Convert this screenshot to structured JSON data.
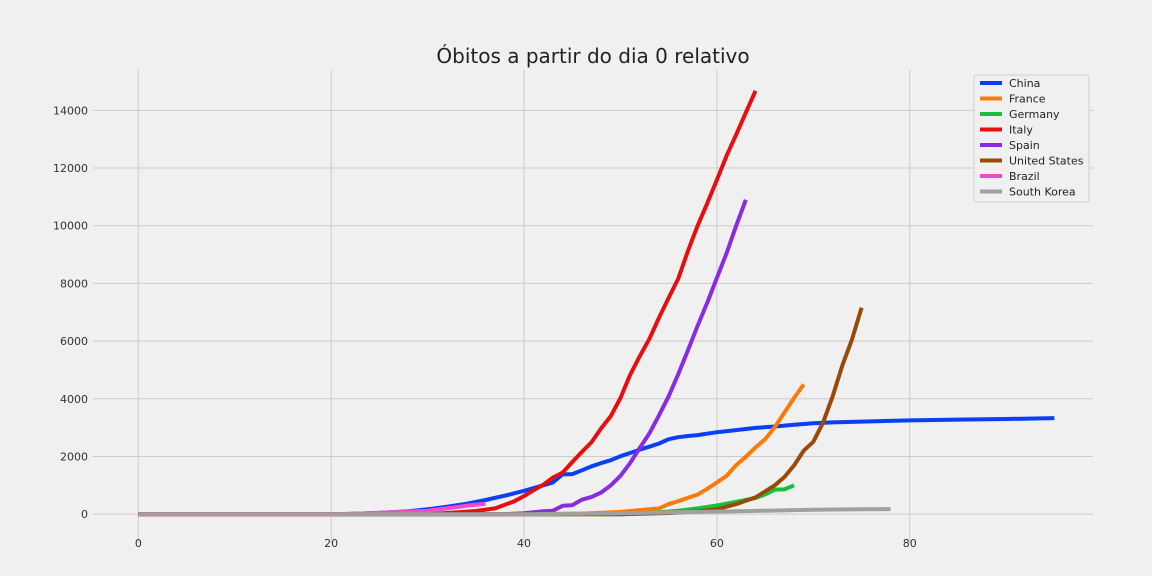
{
  "chart_data": {
    "type": "line",
    "title": "Óbitos a partir do dia 0 relativo",
    "xlabel": "",
    "ylabel": "",
    "xlim": [
      -4.7,
      99
    ],
    "ylim": [
      -1000,
      15400
    ],
    "xticks": [
      0,
      20,
      40,
      60,
      80
    ],
    "yticks": [
      0,
      2000,
      4000,
      6000,
      8000,
      10000,
      12000,
      14000
    ],
    "grid": true,
    "legend_position": "top-right",
    "series": [
      {
        "name": "China",
        "color": "#0a3ff5",
        "points": [
          [
            0,
            0
          ],
          [
            20,
            0
          ],
          [
            22,
            10
          ],
          [
            24,
            30
          ],
          [
            26,
            60
          ],
          [
            28,
            100
          ],
          [
            30,
            170
          ],
          [
            32,
            260
          ],
          [
            34,
            360
          ],
          [
            36,
            490
          ],
          [
            38,
            640
          ],
          [
            40,
            810
          ],
          [
            42,
            1000
          ],
          [
            43,
            1100
          ],
          [
            44,
            1380
          ],
          [
            45,
            1390
          ],
          [
            46,
            1520
          ],
          [
            47,
            1660
          ],
          [
            48,
            1770
          ],
          [
            49,
            1870
          ],
          [
            50,
            2010
          ],
          [
            51,
            2120
          ],
          [
            52,
            2240
          ],
          [
            53,
            2340
          ],
          [
            54,
            2450
          ],
          [
            55,
            2600
          ],
          [
            56,
            2670
          ],
          [
            57,
            2710
          ],
          [
            58,
            2740
          ],
          [
            60,
            2840
          ],
          [
            62,
            2915
          ],
          [
            64,
            2990
          ],
          [
            66,
            3040
          ],
          [
            68,
            3100
          ],
          [
            70,
            3150
          ],
          [
            72,
            3180
          ],
          [
            75,
            3210
          ],
          [
            80,
            3250
          ],
          [
            85,
            3280
          ],
          [
            90,
            3300
          ],
          [
            95,
            3330
          ]
        ]
      },
      {
        "name": "France",
        "color": "#fc7a0c",
        "points": [
          [
            0,
            0
          ],
          [
            40,
            0
          ],
          [
            46,
            20
          ],
          [
            48,
            50
          ],
          [
            50,
            80
          ],
          [
            52,
            140
          ],
          [
            54,
            200
          ],
          [
            55,
            350
          ],
          [
            56,
            450
          ],
          [
            58,
            680
          ],
          [
            59,
            880
          ],
          [
            60,
            1100
          ],
          [
            61,
            1330
          ],
          [
            62,
            1700
          ],
          [
            63,
            1990
          ],
          [
            64,
            2310
          ],
          [
            65,
            2600
          ],
          [
            66,
            3020
          ],
          [
            67,
            3520
          ],
          [
            68,
            4030
          ],
          [
            69,
            4500
          ]
        ]
      },
      {
        "name": "Germany",
        "color": "#17c23a",
        "points": [
          [
            0,
            0
          ],
          [
            50,
            0
          ],
          [
            53,
            40
          ],
          [
            56,
            120
          ],
          [
            58,
            200
          ],
          [
            60,
            300
          ],
          [
            62,
            430
          ],
          [
            64,
            560
          ],
          [
            65,
            680
          ],
          [
            66,
            850
          ],
          [
            67,
            860
          ],
          [
            68,
            1000
          ]
        ]
      },
      {
        "name": "Italy",
        "color": "#e50f0f",
        "points": [
          [
            0,
            0
          ],
          [
            30,
            0
          ],
          [
            33,
            60
          ],
          [
            35,
            110
          ],
          [
            37,
            200
          ],
          [
            39,
            450
          ],
          [
            40,
            630
          ],
          [
            41,
            830
          ],
          [
            42,
            1020
          ],
          [
            43,
            1270
          ],
          [
            44,
            1440
          ],
          [
            45,
            1810
          ],
          [
            46,
            2160
          ],
          [
            47,
            2500
          ],
          [
            48,
            2980
          ],
          [
            49,
            3400
          ],
          [
            50,
            4030
          ],
          [
            51,
            4830
          ],
          [
            52,
            5480
          ],
          [
            53,
            6080
          ],
          [
            54,
            6820
          ],
          [
            55,
            7500
          ],
          [
            56,
            8170
          ],
          [
            57,
            9130
          ],
          [
            58,
            10000
          ],
          [
            59,
            10780
          ],
          [
            60,
            11590
          ],
          [
            61,
            12430
          ],
          [
            62,
            13160
          ],
          [
            63,
            13920
          ],
          [
            64,
            14680
          ]
        ]
      },
      {
        "name": "Spain",
        "color": "#8a2be2",
        "points": [
          [
            0,
            0
          ],
          [
            38,
            0
          ],
          [
            40,
            30
          ],
          [
            42,
            100
          ],
          [
            43,
            120
          ],
          [
            44,
            290
          ],
          [
            45,
            310
          ],
          [
            46,
            500
          ],
          [
            47,
            600
          ],
          [
            48,
            750
          ],
          [
            49,
            1000
          ],
          [
            50,
            1330
          ],
          [
            51,
            1770
          ],
          [
            52,
            2300
          ],
          [
            53,
            2800
          ],
          [
            54,
            3430
          ],
          [
            55,
            4090
          ],
          [
            56,
            4860
          ],
          [
            57,
            5690
          ],
          [
            58,
            6530
          ],
          [
            59,
            7340
          ],
          [
            60,
            8190
          ],
          [
            61,
            9050
          ],
          [
            62,
            10000
          ],
          [
            63,
            10900
          ]
        ]
      },
      {
        "name": "United States",
        "color": "#994a08",
        "points": [
          [
            0,
            0
          ],
          [
            50,
            0
          ],
          [
            55,
            40
          ],
          [
            58,
            100
          ],
          [
            60,
            170
          ],
          [
            62,
            350
          ],
          [
            64,
            580
          ],
          [
            66,
            1000
          ],
          [
            67,
            1290
          ],
          [
            68,
            1690
          ],
          [
            69,
            2200
          ],
          [
            70,
            2510
          ],
          [
            71,
            3170
          ],
          [
            72,
            4080
          ],
          [
            73,
            5150
          ],
          [
            74,
            6050
          ],
          [
            75,
            7160
          ]
        ]
      },
      {
        "name": "Brazil",
        "color": "#f04cc8",
        "points": [
          [
            0,
            0
          ],
          [
            20,
            0
          ],
          [
            22,
            10
          ],
          [
            24,
            30
          ],
          [
            26,
            60
          ],
          [
            28,
            90
          ],
          [
            30,
            120
          ],
          [
            32,
            200
          ],
          [
            34,
            290
          ],
          [
            36,
            360
          ]
        ]
      },
      {
        "name": "South Korea",
        "color": "#a0a0a0",
        "points": [
          [
            0,
            0
          ],
          [
            40,
            0
          ],
          [
            50,
            30
          ],
          [
            55,
            60
          ],
          [
            60,
            90
          ],
          [
            65,
            120
          ],
          [
            70,
            155
          ],
          [
            75,
            170
          ],
          [
            78,
            175
          ]
        ]
      }
    ]
  }
}
